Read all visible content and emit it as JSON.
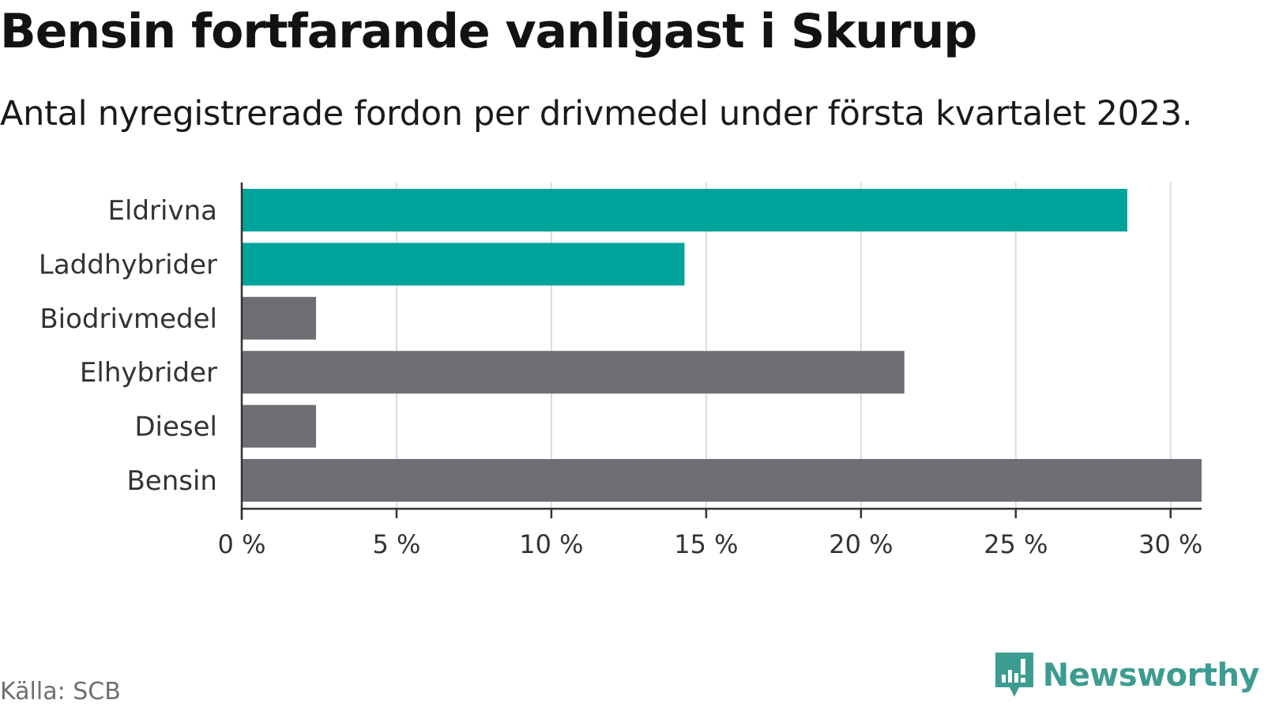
{
  "title": "Bensin fortfarande vanligast i Skurup",
  "subtitle": "Antal nyregistrerade fordon per drivmedel under första kvartalet 2023.",
  "source": "Källa: SCB",
  "brand": {
    "name": "Newsworthy",
    "color": "#3d9c91"
  },
  "chart_data": {
    "type": "bar",
    "orientation": "horizontal",
    "categories": [
      "Eldrivna",
      "Laddhybrider",
      "Biodrivmedel",
      "Elhybrider",
      "Diesel",
      "Bensin"
    ],
    "values": [
      28.6,
      14.3,
      2.4,
      21.4,
      2.4,
      31.0
    ],
    "unit": "%",
    "highlighted": [
      "Eldrivna",
      "Laddhybrider"
    ],
    "colors": {
      "highlight": "#00a39a",
      "default": "#6f6e74"
    },
    "xlim": [
      0,
      31
    ],
    "xticks": [
      0,
      5,
      10,
      15,
      20,
      25,
      30
    ],
    "xtick_labels": [
      "0 %",
      "5 %",
      "10 %",
      "15 %",
      "20 %",
      "25 %",
      "30 %"
    ],
    "grid": true
  }
}
